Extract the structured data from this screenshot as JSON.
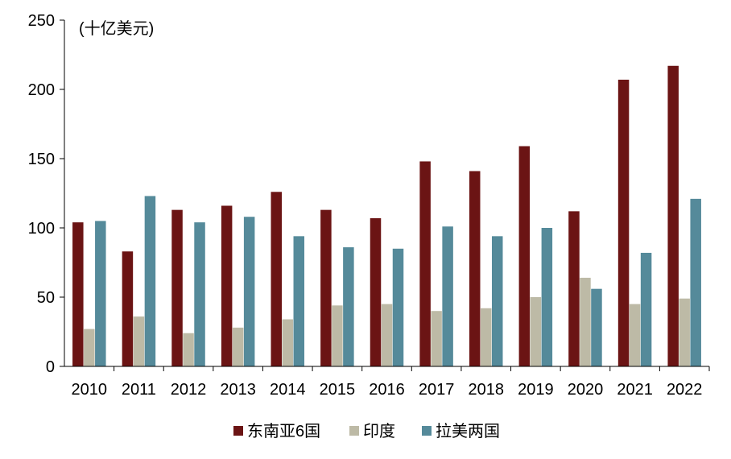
{
  "chart_data": {
    "type": "bar",
    "unit_label": "(十亿美元)",
    "categories": [
      "2010",
      "2011",
      "2012",
      "2013",
      "2014",
      "2015",
      "2016",
      "2017",
      "2018",
      "2019",
      "2020",
      "2021",
      "2022"
    ],
    "series": [
      {
        "name": "东南亚6国",
        "color": "#6b1414",
        "values": [
          104,
          83,
          113,
          116,
          126,
          113,
          107,
          148,
          141,
          159,
          112,
          207,
          217
        ]
      },
      {
        "name": "印度",
        "color": "#bdbaa6",
        "values": [
          27,
          36,
          24,
          28,
          34,
          44,
          45,
          40,
          42,
          50,
          64,
          45,
          49
        ]
      },
      {
        "name": "拉美两国",
        "color": "#558a9a",
        "values": [
          105,
          123,
          104,
          108,
          94,
          86,
          85,
          101,
          94,
          100,
          56,
          82,
          121
        ]
      }
    ],
    "ylim": [
      0,
      250
    ],
    "yticks": [
      0,
      50,
      100,
      150,
      200,
      250
    ],
    "legend_position": "bottom",
    "grid": false
  }
}
